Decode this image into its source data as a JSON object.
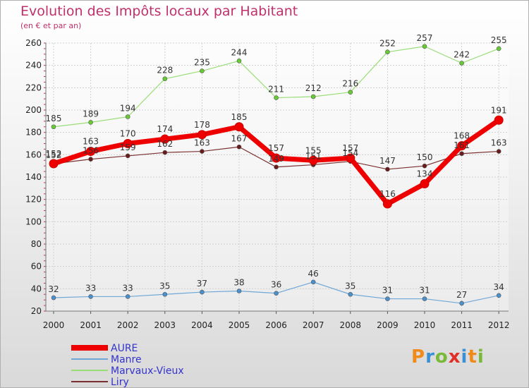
{
  "title": "Evolution des Impôts locaux par Habitant",
  "subtitle": "(en € et par an)",
  "brand": {
    "logo_text": "Proxiti",
    "letter_colors": [
      "#f08a1a",
      "#3a8fd6",
      "#7ab83a",
      "#e0302a",
      "#3a8fd6",
      "#f08a1a",
      "#7ab83a"
    ]
  },
  "chart_data": {
    "type": "line",
    "title": "Evolution des Impôts locaux par Habitant",
    "subtitle": "(en € et par an)",
    "xlabel": "",
    "ylabel": "",
    "x": [
      "2000",
      "2001",
      "2002",
      "2003",
      "2004",
      "2005",
      "2006",
      "2007",
      "2008",
      "2009",
      "2010",
      "2011",
      "2012"
    ],
    "ylim": [
      20,
      260
    ],
    "yticks": [
      20,
      40,
      60,
      80,
      100,
      120,
      140,
      160,
      180,
      200,
      220,
      240,
      260
    ],
    "grid": true,
    "legend_position": "bottom-left",
    "series": [
      {
        "name": "AURE",
        "color": "#ee0000",
        "values": [
          152,
          163,
          170,
          174,
          178,
          185,
          157,
          155,
          157,
          116,
          134,
          168,
          191
        ]
      },
      {
        "name": "Manre",
        "color": "#6fa7d6",
        "values": [
          32,
          33,
          33,
          35,
          37,
          38,
          36,
          46,
          35,
          31,
          31,
          27,
          34
        ]
      },
      {
        "name": "Marvaux-Vieux",
        "color": "#99dd77",
        "values": [
          185,
          189,
          194,
          228,
          235,
          244,
          211,
          212,
          216,
          252,
          257,
          242,
          255
        ]
      },
      {
        "name": "Liry",
        "color": "#7a3030",
        "values": [
          152,
          156,
          159,
          162,
          163,
          167,
          149,
          151,
          154,
          147,
          150,
          161,
          163
        ]
      }
    ]
  }
}
